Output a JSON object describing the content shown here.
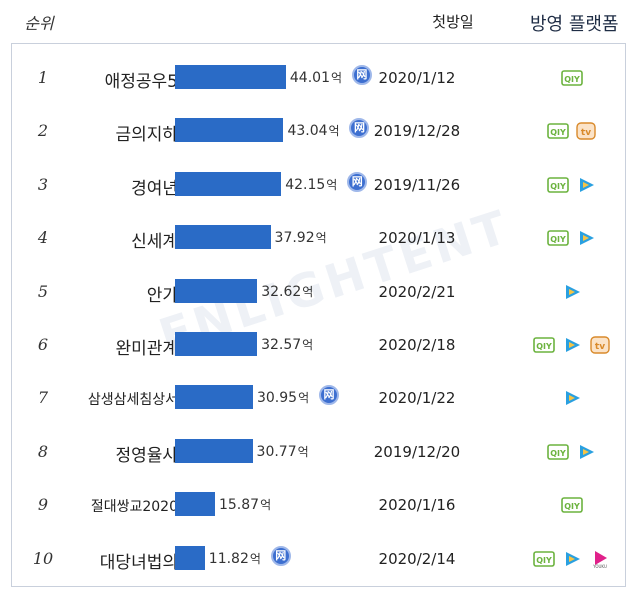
{
  "header": {
    "rank": "순위",
    "date": "첫방일",
    "platform": "방영 플랫폼"
  },
  "watermark": "ENLIGHTENT",
  "unit": "억",
  "colors": {
    "bar": "#2a6bc6",
    "iqiyi": "#6cb33f",
    "tencent": "#2aa0e0",
    "mango": "#d98a2b",
    "youku": "#e0218a"
  },
  "chart_data": {
    "type": "bar",
    "orientation": "horizontal",
    "categories": [
      "애정공우5",
      "금의지하",
      "경여년",
      "신세계",
      "안가",
      "완미관계",
      "삼생삼세침상서",
      "정영율사",
      "절대쌍교2020",
      "대당녀법의"
    ],
    "values": [
      44.01,
      43.04,
      42.15,
      37.92,
      32.62,
      32.57,
      30.95,
      30.77,
      15.87,
      11.82
    ],
    "value_unit": "억",
    "rows": [
      {
        "rank": "1",
        "title": "애정공우5",
        "value": "44.01",
        "net": true,
        "date": "2020/1/12",
        "platforms": [
          "iqiyi"
        ]
      },
      {
        "rank": "2",
        "title": "금의지하",
        "value": "43.04",
        "net": true,
        "date": "2019/12/28",
        "platforms": [
          "iqiyi",
          "mango"
        ]
      },
      {
        "rank": "3",
        "title": "경여년",
        "value": "42.15",
        "net": true,
        "date": "2019/11/26",
        "platforms": [
          "iqiyi",
          "tencent"
        ]
      },
      {
        "rank": "4",
        "title": "신세계",
        "value": "37.92",
        "net": false,
        "date": "2020/1/13",
        "platforms": [
          "iqiyi",
          "tencent"
        ]
      },
      {
        "rank": "5",
        "title": "안가",
        "value": "32.62",
        "net": false,
        "date": "2020/2/21",
        "platforms": [
          "tencent"
        ]
      },
      {
        "rank": "6",
        "title": "완미관계",
        "value": "32.57",
        "net": false,
        "date": "2020/2/18",
        "platforms": [
          "iqiyi",
          "tencent",
          "mango"
        ]
      },
      {
        "rank": "7",
        "title": "삼생삼세침상서",
        "value": "30.95",
        "net": true,
        "date": "2020/1/22",
        "platforms": [
          "tencent"
        ]
      },
      {
        "rank": "8",
        "title": "정영율사",
        "value": "30.77",
        "net": false,
        "date": "2019/12/20",
        "platforms": [
          "iqiyi",
          "tencent"
        ]
      },
      {
        "rank": "9",
        "title": "절대쌍교2020",
        "value": "15.87",
        "net": false,
        "date": "2020/1/16",
        "platforms": [
          "iqiyi"
        ]
      },
      {
        "rank": "10",
        "title": "대당녀법의",
        "value": "11.82",
        "net": true,
        "date": "2020/2/14",
        "platforms": [
          "iqiyi",
          "tencent",
          "youku"
        ]
      }
    ]
  }
}
